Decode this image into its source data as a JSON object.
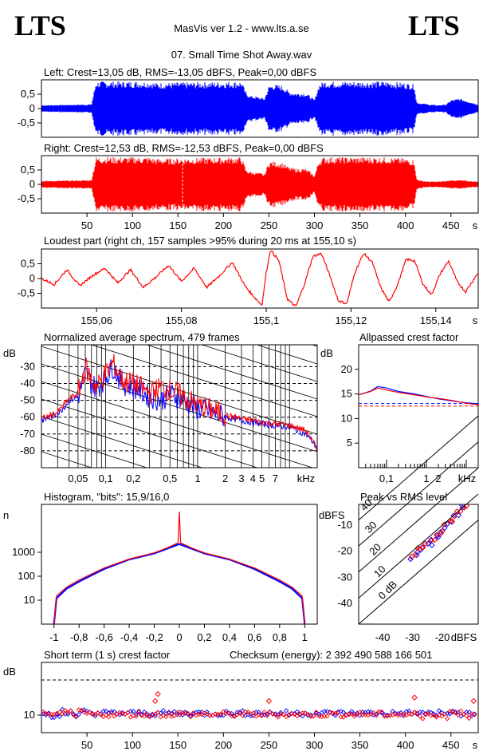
{
  "header": {
    "logo_left": "LTS",
    "logo_right": "LTS",
    "app_title": "MasVis ver 1.2 - www.lts.a.se",
    "file_title": "07. Small Time Shot Away.wav"
  },
  "colors": {
    "left": "#0000ff",
    "right": "#ff0000",
    "axis": "#000000"
  },
  "chart_data": [
    {
      "id": "left_waveform",
      "type": "area",
      "title": "Left: Crest=13,05 dB, RMS=-13,05 dBFS, Peak=0,00 dBFS",
      "ylabel": "",
      "xlabel": "s",
      "y_tick_labels": [
        "0,5",
        "0",
        "-0,5"
      ],
      "y_ticks": [
        0.5,
        0,
        -0.5
      ],
      "ylim": [
        -1,
        1
      ],
      "x_tick_labels": [
        "50",
        "100",
        "150",
        "200",
        "250",
        "300",
        "350",
        "400",
        "450",
        "s"
      ],
      "xlim": [
        0,
        480
      ],
      "series": [
        {
          "color": "#0000ff",
          "envelope_t": [
            0,
            55,
            60,
            120,
            125,
            220,
            225,
            230,
            240,
            245,
            250,
            255,
            265,
            272,
            280,
            290,
            295,
            300,
            305,
            310,
            320,
            330,
            345,
            360,
            380,
            400,
            410,
            412,
            415,
            420,
            425,
            435,
            445,
            450,
            460,
            470,
            480
          ],
          "envelope_amp": [
            0.12,
            0.15,
            0.95,
            0.95,
            0.9,
            0.95,
            0.55,
            0.45,
            0.4,
            0.35,
            0.8,
            0.85,
            0.8,
            0.6,
            0.55,
            0.55,
            0.45,
            0.3,
            0.85,
            0.95,
            0.95,
            0.95,
            0.95,
            0.95,
            0.95,
            0.9,
            0.85,
            0.25,
            0.2,
            0.18,
            0.15,
            0.12,
            0.15,
            0.3,
            0.35,
            0.25,
            0.15
          ]
        }
      ]
    },
    {
      "id": "right_waveform",
      "type": "area",
      "title": "Right: Crest=12,53 dB, RMS=-12,53 dBFS, Peak=0,00 dBFS",
      "ylabel": "",
      "xlabel": "s",
      "y_tick_labels": [
        "0,5",
        "0",
        "-0,5"
      ],
      "y_ticks": [
        0.5,
        0,
        -0.5
      ],
      "ylim": [
        -1,
        1
      ],
      "x_tick_labels": [
        "50",
        "100",
        "150",
        "200",
        "250",
        "300",
        "350",
        "400",
        "450",
        "s"
      ],
      "x_ticks": [
        50,
        100,
        150,
        200,
        250,
        300,
        350,
        400,
        450
      ],
      "xlim": [
        0,
        480
      ],
      "marker_x": 155.1,
      "series": [
        {
          "color": "#ff0000",
          "envelope_t": [
            0,
            55,
            60,
            120,
            125,
            220,
            225,
            230,
            240,
            245,
            250,
            255,
            265,
            272,
            280,
            290,
            295,
            300,
            305,
            310,
            320,
            330,
            345,
            360,
            380,
            400,
            410,
            412,
            415,
            420,
            425,
            435,
            445,
            450,
            460,
            470,
            480
          ],
          "envelope_amp": [
            0.12,
            0.15,
            0.95,
            0.95,
            0.9,
            0.95,
            0.5,
            0.45,
            0.4,
            0.35,
            0.8,
            0.8,
            0.75,
            0.6,
            0.55,
            0.55,
            0.45,
            0.3,
            0.85,
            0.95,
            0.95,
            0.95,
            0.95,
            0.95,
            0.95,
            0.9,
            0.85,
            0.2,
            0.15,
            0.12,
            0.1,
            0.1,
            0.12,
            0.15,
            0.15,
            0.12,
            0.1
          ]
        }
      ]
    },
    {
      "id": "loudest_part",
      "type": "line",
      "title": "Loudest part (right ch, 157 samples >95% during 20 ms at 155,10 s)",
      "y_tick_labels": [
        "0,5",
        "0",
        "-0,5"
      ],
      "y_ticks": [
        0.5,
        0,
        -0.5
      ],
      "ylim": [
        -1,
        1
      ],
      "x_tick_labels": [
        "155,06",
        "155,08",
        "155,1",
        "155,12",
        "155,14",
        "s"
      ],
      "x_ticks": [
        155.06,
        155.08,
        155.1,
        155.12,
        155.14
      ],
      "xlim": [
        155.047,
        155.15
      ],
      "series": [
        {
          "color": "#ff0000",
          "x": [
            155.047,
            155.05,
            155.053,
            155.056,
            155.059,
            155.062,
            155.065,
            155.068,
            155.071,
            155.074,
            155.077,
            155.08,
            155.083,
            155.086,
            155.089,
            155.092,
            155.095,
            155.097,
            155.099,
            155.1,
            155.101,
            155.103,
            155.105,
            155.107,
            155.109,
            155.111,
            155.113,
            155.115,
            155.117,
            155.119,
            155.121,
            155.123,
            155.125,
            155.127,
            155.129,
            155.131,
            155.133,
            155.135,
            155.137,
            155.139,
            155.141,
            155.143,
            155.145,
            155.147,
            155.15
          ],
          "y": [
            0.0,
            -0.2,
            0.3,
            -0.25,
            0.1,
            0.35,
            -0.15,
            0.3,
            -0.3,
            0.05,
            0.45,
            -0.1,
            0.35,
            -0.3,
            0.1,
            0.55,
            -0.25,
            -0.6,
            -0.9,
            0.2,
            0.98,
            0.6,
            -0.7,
            -0.95,
            -0.2,
            0.75,
            0.85,
            0.1,
            -0.75,
            -0.85,
            0.25,
            0.85,
            0.55,
            -0.3,
            -0.8,
            -0.2,
            0.65,
            0.6,
            -0.2,
            -0.55,
            0.15,
            0.6,
            -0.1,
            -0.45,
            0.2
          ]
        }
      ]
    },
    {
      "id": "spectrum",
      "type": "line",
      "title": "Normalized average spectrum, 479 frames",
      "ylabel": "dB",
      "xlabel": "kHz",
      "log_x": true,
      "y_tick_labels": [
        "-30",
        "-40",
        "-50",
        "-60",
        "-70",
        "-80"
      ],
      "y_ticks": [
        -30,
        -40,
        -50,
        -60,
        -70,
        -80
      ],
      "ylim": [
        -90,
        -17
      ],
      "x_tick_labels": [
        "0,05",
        "0,1",
        "0,2",
        "0,5",
        "1",
        "2",
        "3",
        "4",
        "5",
        "7",
        "kHz"
      ],
      "x_ticks": [
        0.05,
        0.1,
        0.2,
        0.5,
        1,
        2,
        3,
        4,
        5,
        7
      ],
      "xlim": [
        0.02,
        20
      ],
      "series": [
        {
          "name": "",
          "color": "#0000ff",
          "x": [
            0.02,
            0.03,
            0.04,
            0.05,
            0.06,
            0.07,
            0.08,
            0.1,
            0.12,
            0.15,
            0.2,
            0.3,
            0.4,
            0.5,
            0.6,
            0.8,
            1,
            1.5,
            2,
            3,
            4,
            5,
            7,
            10,
            15,
            20
          ],
          "y": [
            -62,
            -58,
            -50,
            -48,
            -34,
            -40,
            -43,
            -36,
            -30,
            -40,
            -42,
            -48,
            -50,
            -46,
            -48,
            -52,
            -55,
            -58,
            -60,
            -62,
            -63,
            -64,
            -65,
            -66,
            -70,
            -78
          ]
        },
        {
          "name": "",
          "color": "#ff0000",
          "x": [
            0.02,
            0.03,
            0.04,
            0.05,
            0.06,
            0.07,
            0.08,
            0.1,
            0.12,
            0.15,
            0.2,
            0.3,
            0.4,
            0.5,
            0.6,
            0.8,
            1,
            1.5,
            2,
            3,
            4,
            5,
            7,
            10,
            15,
            20
          ],
          "y": [
            -61,
            -57,
            -49,
            -46,
            -30,
            -38,
            -42,
            -34,
            -28,
            -38,
            -40,
            -46,
            -42,
            -44,
            -46,
            -50,
            -53,
            -56,
            -59,
            -61,
            -62,
            -63,
            -64,
            -65,
            -68,
            -80
          ]
        }
      ]
    },
    {
      "id": "allpassed_crest",
      "type": "line",
      "title": "Allpassed crest factor",
      "ylabel": "dB",
      "xlabel": "kHz",
      "log_x": true,
      "y_tick_labels": [
        "20",
        "15",
        "10",
        "5"
      ],
      "y_ticks": [
        20,
        15,
        10,
        5
      ],
      "ylim": [
        0,
        25
      ],
      "x_tick_labels": [
        "0,1",
        "1",
        "2",
        "kHz"
      ],
      "x_ticks": [
        0.1,
        1,
        2
      ],
      "xlim": [
        0.02,
        20
      ],
      "reference_lines": [
        13.05,
        12.53
      ],
      "series": [
        {
          "name": "",
          "color": "#0000ff",
          "x": [
            0.02,
            0.04,
            0.06,
            0.1,
            0.2,
            0.5,
            1,
            2,
            5,
            10,
            20
          ],
          "y": [
            14.8,
            15.6,
            16.5,
            16.2,
            15.5,
            15,
            14.5,
            14,
            13.5,
            13.2,
            13
          ]
        },
        {
          "name": "",
          "color": "#ff0000",
          "x": [
            0.02,
            0.04,
            0.06,
            0.1,
            0.2,
            0.5,
            1,
            2,
            5,
            10,
            20
          ],
          "y": [
            14.8,
            15.5,
            16.2,
            15.8,
            15.3,
            14.8,
            14.4,
            14.1,
            13.6,
            13.1,
            12.8
          ]
        }
      ]
    },
    {
      "id": "histogram",
      "type": "line",
      "title": "Histogram, \"bits\": 15,9/16,0",
      "ylabel": "n",
      "log_y": true,
      "y_tick_labels": [
        "1000",
        "100",
        "10"
      ],
      "y_ticks": [
        1000,
        100,
        10
      ],
      "ylim": [
        1,
        100000
      ],
      "x_tick_labels": [
        "-1",
        "-0,8",
        "-0,6",
        "-0,4",
        "-0,2",
        "0",
        "0,2",
        "0,4",
        "0,6",
        "0,8",
        "1"
      ],
      "x_ticks": [
        -1,
        -0.8,
        -0.6,
        -0.4,
        -0.2,
        0,
        0.2,
        0.4,
        0.6,
        0.8,
        1
      ],
      "xlim": [
        -1.1,
        1.1
      ],
      "series": [
        {
          "name": "",
          "color": "#0000ff",
          "x": [
            -1,
            -0.98,
            -0.9,
            -0.8,
            -0.6,
            -0.4,
            -0.2,
            -0.1,
            0,
            0.1,
            0.2,
            0.4,
            0.6,
            0.8,
            0.9,
            0.98,
            1
          ],
          "y": [
            1,
            12,
            30,
            60,
            200,
            500,
            900,
            1400,
            2200,
            1400,
            900,
            500,
            200,
            60,
            30,
            12,
            1
          ]
        },
        {
          "name": "",
          "color": "#ff0000",
          "x": [
            -1,
            -0.98,
            -0.9,
            -0.8,
            -0.6,
            -0.4,
            -0.2,
            -0.1,
            -0.01,
            0,
            0.01,
            0.1,
            0.2,
            0.4,
            0.6,
            0.8,
            0.9,
            0.98,
            1
          ],
          "y": [
            1,
            15,
            35,
            70,
            220,
            520,
            950,
            1500,
            2500,
            50000,
            2500,
            1500,
            950,
            520,
            220,
            70,
            35,
            15,
            1
          ]
        }
      ]
    },
    {
      "id": "peak_vs_rms",
      "type": "scatter",
      "title": "Peak vs RMS level",
      "ylabel": "dBFS",
      "xlabel": "dBFS",
      "y_tick_labels": [
        "-10",
        "-20",
        "-30",
        "-40"
      ],
      "y_ticks": [
        -10,
        -20,
        -30,
        -40
      ],
      "ylim": [
        -48,
        -2
      ],
      "x_tick_labels": [
        "-40",
        "-30",
        "-20",
        "dBFS"
      ],
      "x_ticks": [
        -40,
        -30,
        -20
      ],
      "xlim": [
        -48,
        -8
      ],
      "diagonal_labels": [
        "40",
        "30",
        "20",
        "10",
        "0 dB"
      ],
      "series": [
        {
          "name": "",
          "color": "#0000ff",
          "x": [
            -30,
            -29,
            -28,
            -27,
            -26,
            -25,
            -24,
            -23,
            -22,
            -21,
            -20,
            -19,
            -18,
            -17,
            -16,
            -15,
            -14,
            -13
          ],
          "y": [
            -23,
            -22,
            -20,
            -19,
            -19,
            -17,
            -17,
            -16,
            -14,
            -14,
            -12,
            -11,
            -10,
            -8,
            -7,
            -6,
            -4,
            -3
          ]
        },
        {
          "name": "",
          "color": "#ff0000",
          "x": [
            -31,
            -29,
            -28,
            -27,
            -26,
            -25,
            -24,
            -23,
            -22,
            -21,
            -20,
            -19,
            -18,
            -17,
            -16,
            -15,
            -14,
            -13,
            -12
          ],
          "y": [
            -22,
            -21,
            -19,
            -19,
            -18,
            -17,
            -16,
            -15,
            -14,
            -13,
            -12,
            -10,
            -9,
            -8,
            -7,
            -5,
            -4,
            -3,
            -2
          ]
        }
      ]
    },
    {
      "id": "short_term_crest",
      "type": "scatter",
      "title": "Short term (1 s) crest factor",
      "checksum": "Checksum (energy):  2 392 490 588 166 501",
      "ylabel": "dB",
      "xlabel": "s",
      "y_tick_labels": [
        "10"
      ],
      "y_ticks": [
        10
      ],
      "ylim": [
        5,
        25
      ],
      "dashed_line": 20,
      "x_tick_labels": [
        "50",
        "100",
        "150",
        "200",
        "250",
        "300",
        "350",
        "400",
        "450",
        "s"
      ],
      "x_ticks": [
        50,
        100,
        150,
        200,
        250,
        300,
        350,
        400,
        450
      ],
      "xlim": [
        0,
        480
      ],
      "series": [
        {
          "name": "",
          "color": "#0000ff",
          "baseline": 10.5
        },
        {
          "name": "",
          "color": "#ff0000",
          "baseline": 10.2,
          "outliers": [
            [
              125,
              14
            ],
            [
              128,
              16
            ],
            [
              250,
              14
            ],
            [
              410,
              15
            ],
            [
              475,
              14
            ]
          ]
        }
      ]
    }
  ]
}
